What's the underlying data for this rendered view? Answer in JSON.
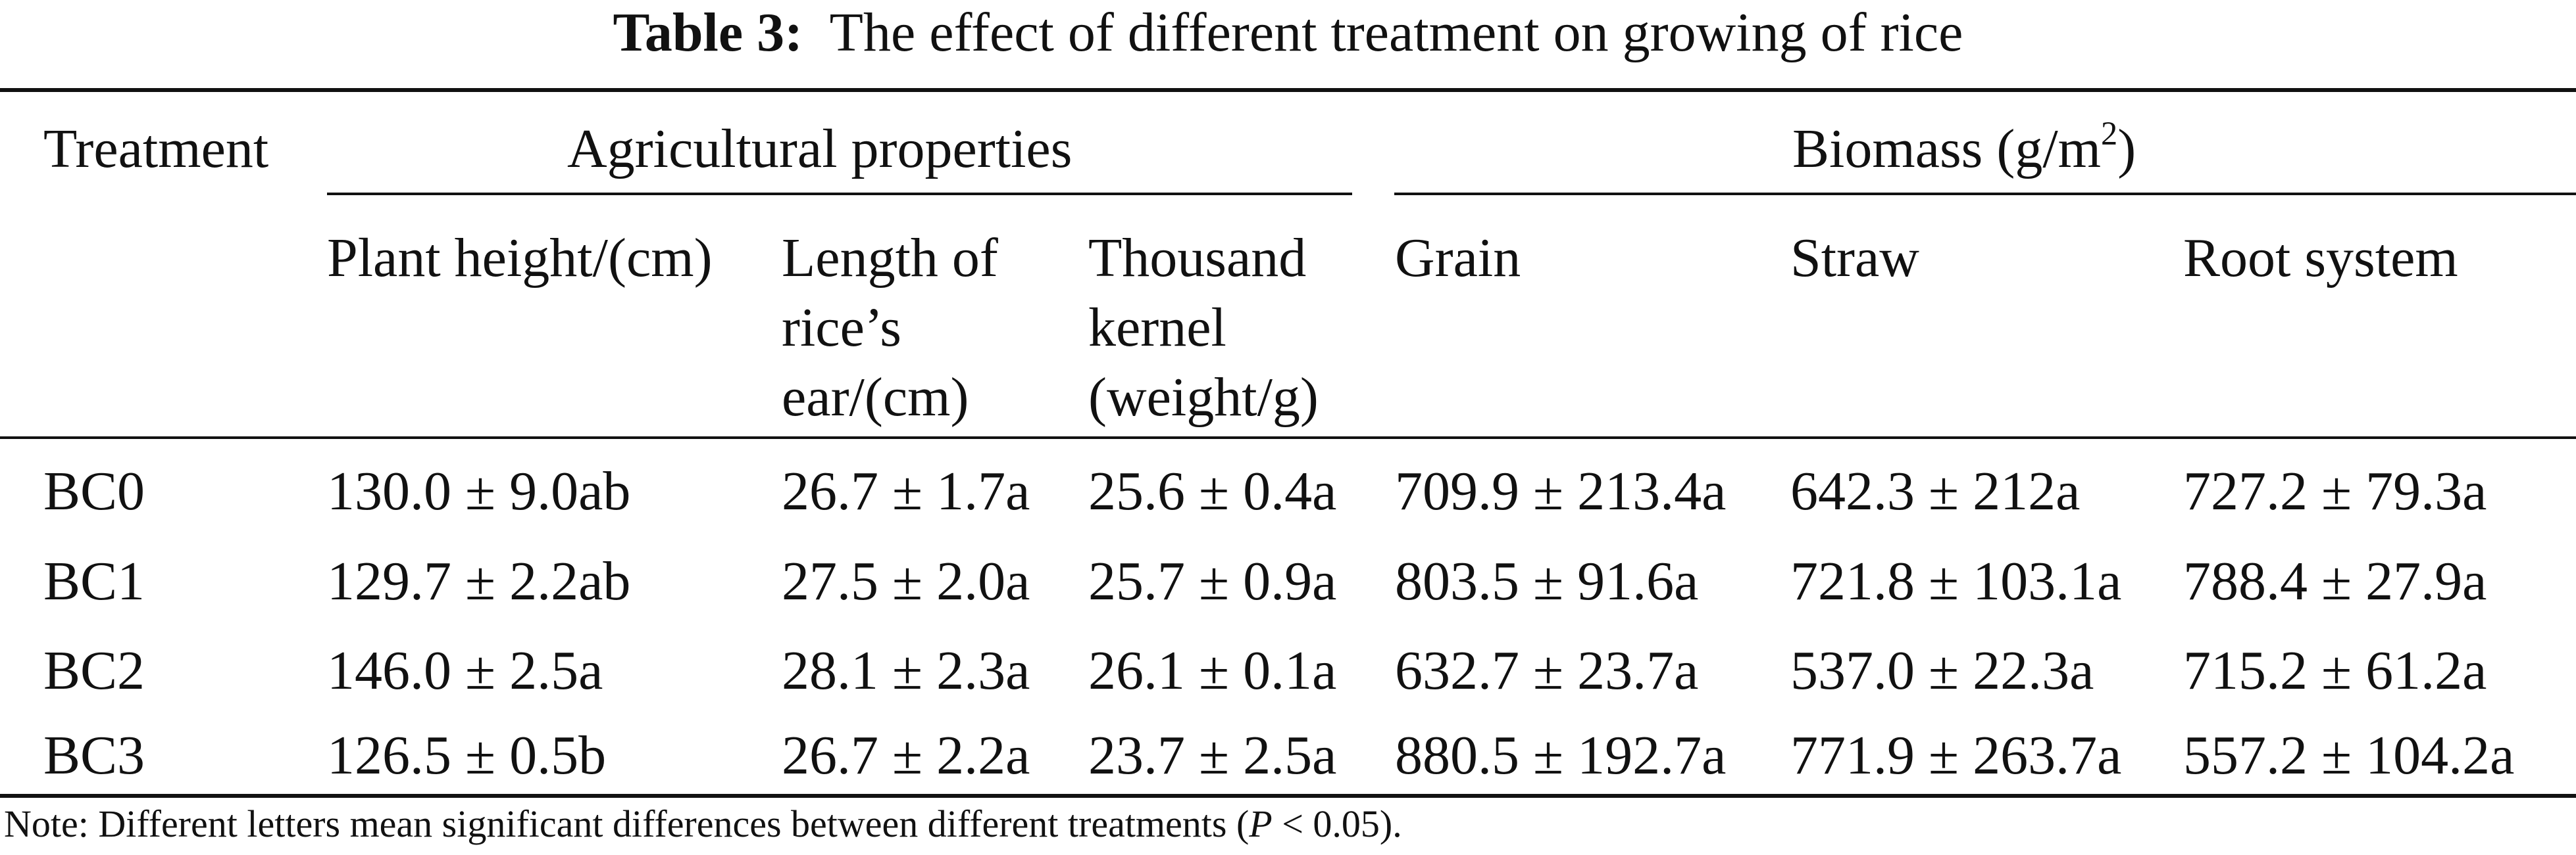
{
  "table": {
    "title_label": "Table 3:",
    "title_text": "The effect of different treatment on growing of rice",
    "headers": {
      "treatment": "Treatment",
      "agricultural": "Agricultural properties",
      "biomass": "Biomass (g/m",
      "biomass_sup": "2",
      "biomass_close": ")",
      "plant_height": "Plant height/(cm)",
      "ear_line1": "Length of",
      "ear_line2": "rice’s",
      "ear_line3": "ear/(cm)",
      "tkw_line1": "Thousand",
      "tkw_line2": "kernel",
      "tkw_line3": "(weight/g)",
      "grain": "Grain",
      "straw": "Straw",
      "root": "Root system"
    },
    "rows": [
      {
        "treatment": "BC0",
        "plant_height": "130.0 ± 9.0ab",
        "ear_length": "26.7 ± 1.7a",
        "tkw": "25.6 ± 0.4a",
        "grain": "709.9 ± 213.4a",
        "straw": "642.3 ± 212a",
        "root": "727.2 ± 79.3a"
      },
      {
        "treatment": "BC1",
        "plant_height": "129.7 ± 2.2ab",
        "ear_length": "27.5 ± 2.0a",
        "tkw": "25.7 ± 0.9a",
        "grain": "803.5 ± 91.6a",
        "straw": "721.8 ± 103.1a",
        "root": "788.4 ± 27.9a"
      },
      {
        "treatment": "BC2",
        "plant_height": "146.0 ± 2.5a",
        "ear_length": "28.1 ± 2.3a",
        "tkw": "26.1 ± 0.1a",
        "grain": "632.7 ± 23.7a",
        "straw": "537.0 ± 22.3a",
        "root": "715.2 ± 61.2a"
      },
      {
        "treatment": "BC3",
        "plant_height": "126.5 ± 0.5b",
        "ear_length": "26.7 ± 2.2a",
        "tkw": "23.7 ± 2.5a",
        "grain": "880.5 ± 192.7a",
        "straw": "771.9 ± 263.7a",
        "root": "557.2 ± 104.2a"
      }
    ],
    "note_prefix": "Note: Different letters mean significant differences between different treatments (",
    "note_p": "P",
    "note_suffix": " < 0.05)."
  }
}
